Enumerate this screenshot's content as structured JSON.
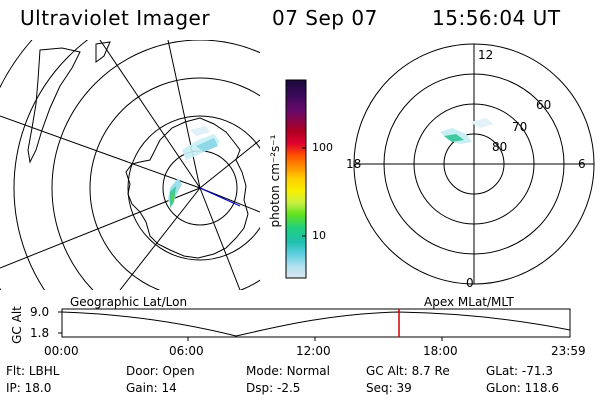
{
  "header": {
    "instrument": "Ultraviolet Imager",
    "date": "07 Sep 07",
    "time": "15:56:04 UT"
  },
  "colorbar": {
    "unit_label": "photon cm⁻²s⁻¹",
    "ticks": [
      "100",
      "10"
    ],
    "scale": "log",
    "colors_top_to_bottom": [
      "#1a0a3a",
      "#3b0a5a",
      "#6a0a6a",
      "#b00020",
      "#e00030",
      "#ff5000",
      "#ff9000",
      "#ffd000",
      "#f8f000",
      "#c8f040",
      "#60e020",
      "#20d080",
      "#20c0b0",
      "#60d0e0",
      "#b0e0f0",
      "#dde8f0"
    ]
  },
  "polar_plot": {
    "labels_mlt": {
      "top": "12",
      "left": "18",
      "right": "6",
      "bottom": "0"
    },
    "labels_mlat": [
      "60",
      "70",
      "80"
    ],
    "frame_label": "Apex  MLat/MLT"
  },
  "geo_plot": {
    "frame_label": "Geographic Lat/Lon"
  },
  "altitude_strip": {
    "axis_label": "GC Alt",
    "y_ticks": [
      "9.0",
      "1.8"
    ],
    "x_ticks": [
      "00:00",
      "06:00",
      "12:00",
      "18:00",
      "23:59"
    ],
    "marker_color": "#cc0000"
  },
  "status": {
    "row1": [
      {
        "key": "Flt:",
        "value": "LBHL"
      },
      {
        "key": "Door:",
        "value": "Open"
      },
      {
        "key": "Mode:",
        "value": "Normal"
      },
      {
        "key": "GC Alt:",
        "value": "8.7 Re"
      },
      {
        "key": "GLat:",
        "value": "-71.3"
      }
    ],
    "row2": [
      {
        "key": "IP:",
        "value": "18.0"
      },
      {
        "key": "Gain:",
        "value": "14"
      },
      {
        "key": "Dsp:",
        "value": "-2.5"
      },
      {
        "key": "Seq:",
        "value": "39"
      },
      {
        "key": "GLon:",
        "value": "118.6"
      }
    ]
  }
}
